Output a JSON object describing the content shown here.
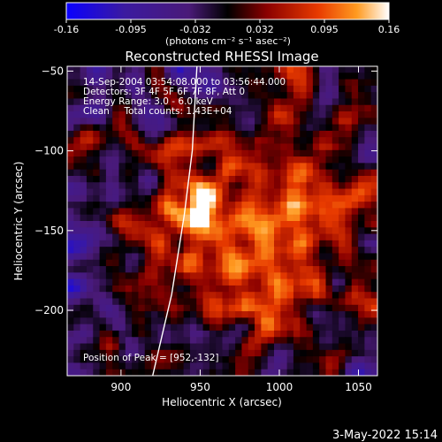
{
  "chart_data": {
    "type": "heatmap",
    "title": "Reconstructed RHESSI Image",
    "xlabel": "Heliocentric X (arcsec)",
    "ylabel": "Heliocentric Y (arcsec)",
    "xlim": [
      866,
      1062
    ],
    "ylim": [
      -241,
      -47
    ],
    "x_ticks": [
      900,
      950,
      1000,
      1050
    ],
    "y_ticks": [
      -50,
      -100,
      -150,
      -200
    ],
    "colorbar": {
      "min": -0.16,
      "max": 0.16,
      "ticks": [
        "-0.16",
        "-0.095",
        "-0.032",
        "0.032",
        "0.095",
        "0.16"
      ],
      "unit_label": "(photons cm⁻² s⁻¹ asec⁻²)"
    },
    "info_lines": [
      "14-Sep-2004 03:54:08.000 to 03:56:44.000",
      "Detectors: 3F 4F 5F 6F 7F 8F, Att 0",
      "Energy Range: 3.0 - 6.0 keV",
      "Clean     Total counts: 1.43E+04"
    ],
    "peak": {
      "x": 952,
      "y": -132,
      "label": "Position of Peak = [952,-132]"
    },
    "limb_curve": [
      [
        948,
        -47
      ],
      [
        945,
        -100
      ],
      [
        940,
        -140
      ],
      [
        932,
        -190
      ],
      [
        920,
        -241
      ]
    ],
    "date_stamp": "3-May-2022 15:14"
  }
}
